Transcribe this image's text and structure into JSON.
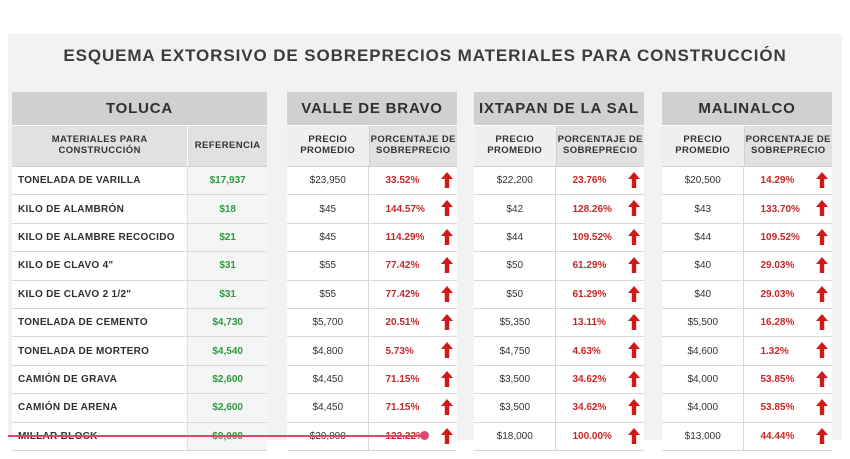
{
  "title": "ESQUEMA EXTORSIVO DE SOBREPRECIOS MATERIALES PARA CONSTRUCCIÓN",
  "toluca": {
    "name": "TOLUCA",
    "col_materials": "MATERIALES PARA CONSTRUCCIÓN",
    "col_reference": "REFERENCIA"
  },
  "city_columns": {
    "avg_price": "PRECIO PROMEDIO",
    "overprice_pct": "PORCENTAJE DE SOBREPRECIO"
  },
  "cities": [
    "VALLE DE BRAVO",
    "IXTAPAN DE LA SAL",
    "MALINALCO"
  ],
  "colors": {
    "reference_green": "#2e9a3e",
    "percent_red": "#c62828",
    "arrow_red": "#d01a1a",
    "header_gray": "#cfd1d1"
  },
  "rows": [
    {
      "material": "TONELADA DE VARILLA",
      "reference": "$17,937",
      "prices": [
        "$23,950",
        "$22,200",
        "$20,500"
      ],
      "pcts": [
        "33.52%",
        "23.76%",
        "14.29%"
      ]
    },
    {
      "material": "KILO DE ALAMBRÓN",
      "reference": "$18",
      "prices": [
        "$45",
        "$42",
        "$43"
      ],
      "pcts": [
        "144.57%",
        "128.26%",
        "133.70%"
      ]
    },
    {
      "material": "KILO DE ALAMBRE RECOCIDO",
      "reference": "$21",
      "prices": [
        "$45",
        "$44",
        "$44"
      ],
      "pcts": [
        "114.29%",
        "109.52%",
        "109.52%"
      ]
    },
    {
      "material": "KILO DE CLAVO 4\"",
      "reference": "$31",
      "prices": [
        "$55",
        "$50",
        "$40"
      ],
      "pcts": [
        "77.42%",
        "61.29%",
        "29.03%"
      ]
    },
    {
      "material": "KILO DE CLAVO 2 1/2\"",
      "reference": "$31",
      "prices": [
        "$55",
        "$50",
        "$40"
      ],
      "pcts": [
        "77.42%",
        "61.29%",
        "29.03%"
      ]
    },
    {
      "material": "TONELADA DE CEMENTO",
      "reference": "$4,730",
      "prices": [
        "$5,700",
        "$5,350",
        "$5,500"
      ],
      "pcts": [
        "20.51%",
        "13.11%",
        "16.28%"
      ]
    },
    {
      "material": "TONELADA DE MORTERO",
      "reference": "$4,540",
      "prices": [
        "$4,800",
        "$4,750",
        "$4,600"
      ],
      "pcts": [
        "5.73%",
        "4.63%",
        "1.32%"
      ]
    },
    {
      "material": "CAMIÓN DE GRAVA",
      "reference": "$2,600",
      "prices": [
        "$4,450",
        "$3,500",
        "$4,000"
      ],
      "pcts": [
        "71.15%",
        "34.62%",
        "53.85%"
      ]
    },
    {
      "material": "CAMIÓN DE ARENA",
      "reference": "$2,600",
      "prices": [
        "$4,450",
        "$3,500",
        "$4,000"
      ],
      "pcts": [
        "71.15%",
        "34.62%",
        "53.85%"
      ]
    },
    {
      "material": "MILLAR BLOCK",
      "reference": "$9,000",
      "prices": [
        "$20,000",
        "$18,000",
        "$13,000"
      ],
      "pcts": [
        "122.22%",
        "100.00%",
        "44.44%"
      ]
    }
  ]
}
